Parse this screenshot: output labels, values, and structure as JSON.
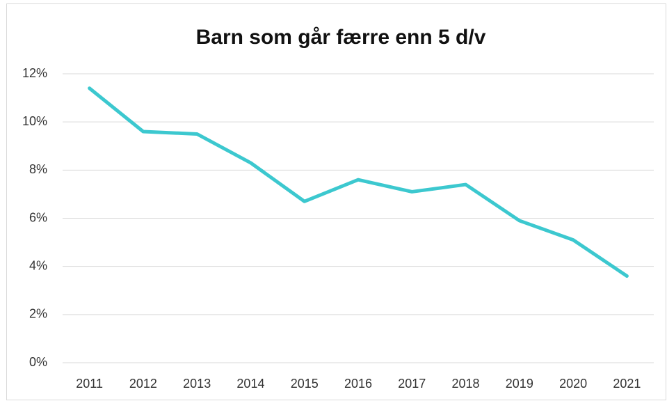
{
  "chart_data": {
    "type": "line",
    "title": "Barn som går færre enn 5 d/v",
    "categories": [
      "2011",
      "2012",
      "2013",
      "2014",
      "2015",
      "2016",
      "2017",
      "2018",
      "2019",
      "2020",
      "2021"
    ],
    "series": [
      {
        "name": "Barn som går færre enn 5 d/v",
        "color": "#3cc8cf",
        "values": [
          11.4,
          9.6,
          9.5,
          8.3,
          6.7,
          7.6,
          7.1,
          7.4,
          5.9,
          5.1,
          3.6
        ]
      }
    ],
    "ylim": [
      0,
      12
    ],
    "yticks": [
      {
        "value": 0,
        "label": "0%"
      },
      {
        "value": 2,
        "label": "2%"
      },
      {
        "value": 4,
        "label": "4%"
      },
      {
        "value": 6,
        "label": "6%"
      },
      {
        "value": 8,
        "label": "8%"
      },
      {
        "value": 10,
        "label": "10%"
      },
      {
        "value": 12,
        "label": "12%"
      }
    ],
    "grid": true,
    "legend": false
  }
}
